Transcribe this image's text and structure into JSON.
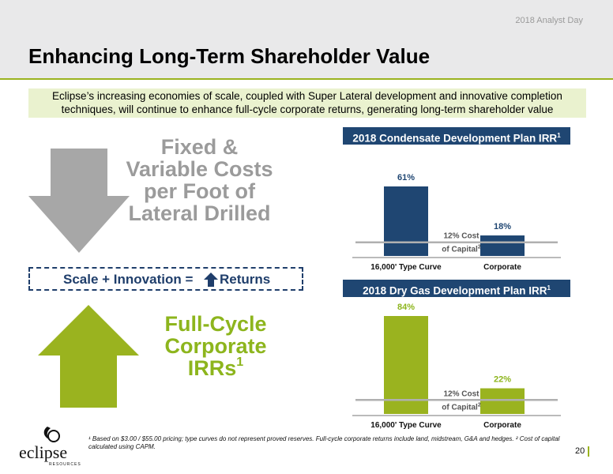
{
  "header": {
    "event_label": "2018 Analyst Day",
    "title": "Enhancing Long-Term Shareholder Value"
  },
  "intro_text": "Eclipse’s increasing economies of scale, coupled with Super Lateral development and innovative completion techniques, will continue to enhance full-cycle corporate returns, generating long-term shareholder value",
  "left": {
    "costs_text": "Fixed & Variable Costs per Foot of Lateral Drilled",
    "formula_left": "Scale + Innovation =",
    "formula_right": "Returns",
    "irr_text_main": "Full-Cycle Corporate IRRs",
    "irr_text_sup": "1",
    "colors": {
      "grey_arrow": "#a7a7a7",
      "green_arrow": "#9ab31f",
      "navy": "#1f3e6b"
    }
  },
  "chart_data": [
    {
      "type": "bar",
      "title": "2018 Condensate Development Plan IRR",
      "title_sup": "1",
      "categories": [
        "16,000' Type Curve",
        "Corporate"
      ],
      "values": [
        61,
        18
      ],
      "value_labels": [
        "61%",
        "18%"
      ],
      "reference_line": {
        "value": 12,
        "label_line1": "12% Cost",
        "label_line2": "of Capital",
        "label_sup": "2"
      },
      "ylim": [
        0,
        70
      ],
      "bar_color": "#1f4672",
      "label_color": "#1f4672"
    },
    {
      "type": "bar",
      "title": "2018 Dry Gas Development Plan IRR",
      "title_sup": "1",
      "categories": [
        "16,000' Type Curve",
        "Corporate"
      ],
      "values": [
        84,
        22
      ],
      "value_labels": [
        "84%",
        "22%"
      ],
      "reference_line": {
        "value": 12,
        "label_line1": "12% Cost",
        "label_line2": "of Capital",
        "label_sup": "2"
      },
      "ylim": [
        0,
        90
      ],
      "bar_color": "#9ab31f",
      "label_color": "#8db51d"
    }
  ],
  "footnote": "¹ Based on $3.00 / $55.00 pricing; type curves do not represent proved reserves. Full-cycle corporate returns include land, midstream, G&A and hedges. ² Cost of capital calculated using CAPM.",
  "page_number": "20",
  "logo": {
    "name": "eclipse",
    "subtext": "RESOURCES"
  }
}
